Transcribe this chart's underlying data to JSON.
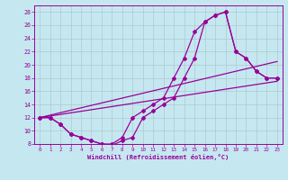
{
  "xlabel": "Windchill (Refroidissement éolien,°C)",
  "bg_color": "#c5e8f0",
  "line_color": "#990099",
  "grid_color": "#b0c8d0",
  "xlim": [
    -0.5,
    23.5
  ],
  "ylim": [
    8,
    29
  ],
  "xticks": [
    0,
    1,
    2,
    3,
    4,
    5,
    6,
    7,
    8,
    9,
    10,
    11,
    12,
    13,
    14,
    15,
    16,
    17,
    18,
    19,
    20,
    21,
    22,
    23
  ],
  "yticks": [
    8,
    10,
    12,
    14,
    16,
    18,
    20,
    22,
    24,
    26,
    28
  ],
  "curve1_x": [
    0,
    1,
    2,
    3,
    4,
    5,
    6,
    7,
    8,
    9,
    10,
    11,
    12,
    13,
    14,
    15,
    16,
    17,
    18,
    19,
    20,
    21,
    22,
    23
  ],
  "curve1_y": [
    12,
    12,
    11,
    9.5,
    9,
    8.5,
    8,
    8,
    9,
    12,
    13,
    14,
    15,
    18,
    21,
    25,
    26.5,
    27.5,
    28,
    22,
    21,
    19,
    18,
    18
  ],
  "curve2_x": [
    0,
    1,
    2,
    3,
    4,
    5,
    6,
    7,
    8,
    9,
    10,
    11,
    12,
    13,
    14,
    15,
    16,
    17,
    18,
    19,
    20,
    21,
    22,
    23
  ],
  "curve2_y": [
    12,
    12,
    11,
    9.5,
    9,
    8.5,
    8,
    7.8,
    8.5,
    9,
    12,
    13,
    14,
    15,
    18,
    21,
    26.5,
    27.5,
    28,
    22,
    21,
    19,
    18,
    18
  ],
  "line1_x": [
    0,
    23
  ],
  "line1_y": [
    12,
    17.5
  ],
  "line2_x": [
    0,
    23
  ],
  "line2_y": [
    12,
    20.5
  ]
}
